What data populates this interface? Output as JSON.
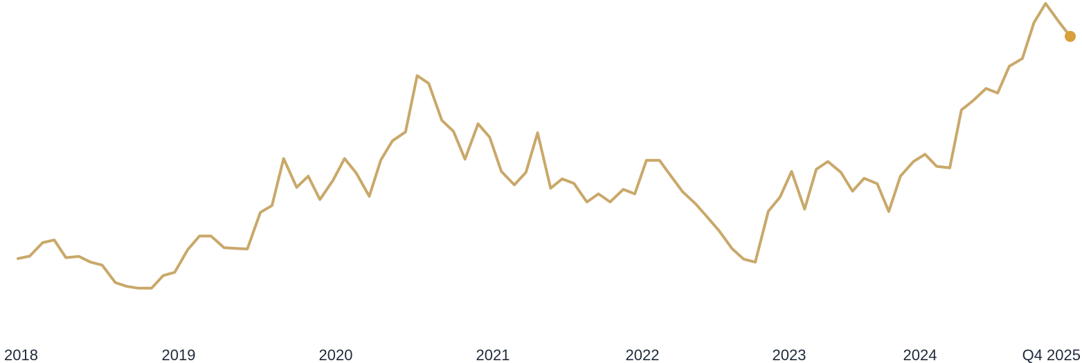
{
  "chart_data": {
    "type": "line",
    "title": "",
    "xlabel": "",
    "ylabel": "",
    "grid": false,
    "legend": "none",
    "y_scale": "relative index (unlabeled)",
    "ylim": [
      0,
      100
    ],
    "colors": {
      "line": "#C9A86A",
      "endpoint": "#D8A03A",
      "tick_text": "#1F2A3A"
    },
    "x_ticks": [
      "2018",
      "2019",
      "2020",
      "2021",
      "2022",
      "2023",
      "2024",
      "Q4 2025"
    ],
    "series": [
      {
        "x": [
          2018.0,
          2018.08,
          2018.17,
          2018.25,
          2018.33,
          2018.42,
          2018.5,
          2018.58,
          2018.67,
          2018.75,
          2018.83,
          2018.92,
          2019.0,
          2019.08,
          2019.17,
          2019.25,
          2019.33,
          2019.42,
          2019.5,
          2019.58,
          2019.67,
          2019.75,
          2019.83,
          2019.92,
          2020.0,
          2020.08,
          2020.17,
          2020.25,
          2020.33,
          2020.42,
          2020.5,
          2020.58,
          2020.67,
          2020.75,
          2020.83,
          2020.92,
          2021.0,
          2021.08,
          2021.17,
          2021.25,
          2021.33,
          2021.42,
          2021.5,
          2021.58,
          2021.67,
          2021.75,
          2021.83,
          2021.92,
          2022.0,
          2022.08,
          2022.17,
          2022.25,
          2022.33,
          2022.42,
          2022.5,
          2022.58,
          2022.67,
          2022.75,
          2022.83,
          2022.92,
          2023.0,
          2023.08,
          2023.17,
          2023.25,
          2023.33,
          2023.42,
          2023.5,
          2023.58,
          2023.67,
          2023.75,
          2023.83,
          2023.92,
          2024.0,
          2024.08,
          2024.17,
          2024.25,
          2024.33,
          2024.42,
          2024.5,
          2024.58,
          2024.67,
          2024.75,
          2024.83,
          2024.92,
          2025.0,
          2025.08,
          2025.17,
          2025.25
        ],
        "values": [
          14.8,
          15.6,
          20.1,
          21.0,
          15.1,
          15.5,
          13.6,
          12.6,
          6.8,
          5.5,
          4.9,
          4.9,
          9.1,
          10.2,
          17.8,
          22.3,
          22.3,
          18.4,
          18.2,
          18.0,
          30.2,
          32.5,
          48.2,
          38.6,
          42.3,
          34.5,
          40.9,
          48.2,
          43.4,
          35.6,
          47.7,
          54.1,
          57.1,
          75.9,
          73.3,
          61.0,
          57.3,
          48.0,
          59.8,
          55.3,
          43.9,
          39.4,
          43.6,
          56.8,
          38.3,
          41.4,
          39.9,
          33.7,
          36.4,
          33.7,
          37.9,
          36.4,
          47.6,
          47.6,
          42.3,
          37.1,
          33.0,
          28.6,
          24.1,
          18.1,
          14.6,
          13.6,
          30.6,
          35.3,
          43.9,
          31.3,
          44.6,
          47.2,
          43.6,
          37.3,
          41.6,
          39.8,
          30.5,
          42.3,
          47.2,
          49.6,
          45.6,
          45.1,
          64.4,
          67.5,
          71.6,
          70.1,
          79.0,
          81.6,
          93.6,
          100.0,
          94.0,
          89.0
        ]
      }
    ]
  }
}
